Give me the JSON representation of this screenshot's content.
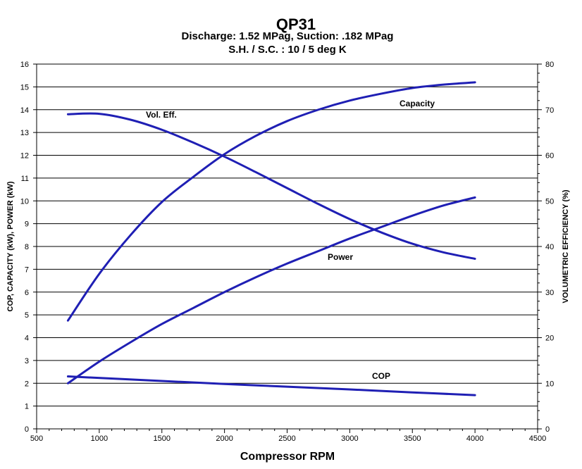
{
  "chart_data": {
    "type": "line",
    "title": "QP31",
    "subtitle_lines": [
      "Discharge: 1.52 MPag, Suction: .182 MPag",
      "S.H. / S.C. : 10 / 5 deg K"
    ],
    "xlabel": "Compressor RPM",
    "ylabel_left": "COP, CAPACITY (kW), POWER (kW)",
    "ylabel_right": "VOLUMETRIC EFFICIENCY (%)",
    "xlim": [
      500,
      4500
    ],
    "ylim_left": [
      0,
      16
    ],
    "ylim_right": [
      0,
      80
    ],
    "x_ticks": [
      "500",
      "1000",
      "1500",
      "2000",
      "2500",
      "3000",
      "3500",
      "4000",
      "4500"
    ],
    "y_ticks_left": [
      "0",
      "1",
      "2",
      "3",
      "4",
      "5",
      "6",
      "7",
      "8",
      "9",
      "10",
      "11",
      "12",
      "13",
      "14",
      "15",
      "16"
    ],
    "y_ticks_right": [
      "0",
      "10",
      "20",
      "30",
      "40",
      "50",
      "60",
      "70",
      "80"
    ],
    "grid": true,
    "line_color": "#1f1fb4",
    "series": [
      {
        "name": "Capacity",
        "axis": "left",
        "x": [
          750,
          1000,
          1250,
          1500,
          1750,
          2000,
          2250,
          2500,
          2750,
          3000,
          3250,
          3500,
          3750,
          4000
        ],
        "values": [
          4.75,
          6.8,
          8.5,
          9.95,
          11.05,
          12.05,
          12.85,
          13.5,
          14.0,
          14.4,
          14.7,
          14.95,
          15.1,
          15.2
        ]
      },
      {
        "name": "Power",
        "axis": "left",
        "x": [
          750,
          1000,
          1250,
          1500,
          1750,
          2000,
          2250,
          2500,
          2750,
          3000,
          3250,
          3500,
          3750,
          4000
        ],
        "values": [
          2.0,
          2.95,
          3.8,
          4.6,
          5.3,
          6.0,
          6.65,
          7.25,
          7.8,
          8.35,
          8.85,
          9.35,
          9.8,
          10.15
        ]
      },
      {
        "name": "COP",
        "axis": "left",
        "x": [
          750,
          1500,
          2000,
          2500,
          3000,
          3500,
          4000
        ],
        "values": [
          2.3,
          2.1,
          1.97,
          1.85,
          1.73,
          1.6,
          1.48
        ]
      },
      {
        "name": "Vol. Eff.",
        "axis": "right",
        "x": [
          750,
          1000,
          1250,
          1500,
          1750,
          2000,
          2250,
          2500,
          2750,
          3000,
          3250,
          3500,
          3750,
          4000
        ],
        "values": [
          69,
          69.1,
          67.8,
          65.6,
          62.8,
          59.7,
          56.3,
          52.8,
          49.3,
          46.0,
          43.1,
          40.6,
          38.7,
          37.3
        ]
      }
    ]
  }
}
